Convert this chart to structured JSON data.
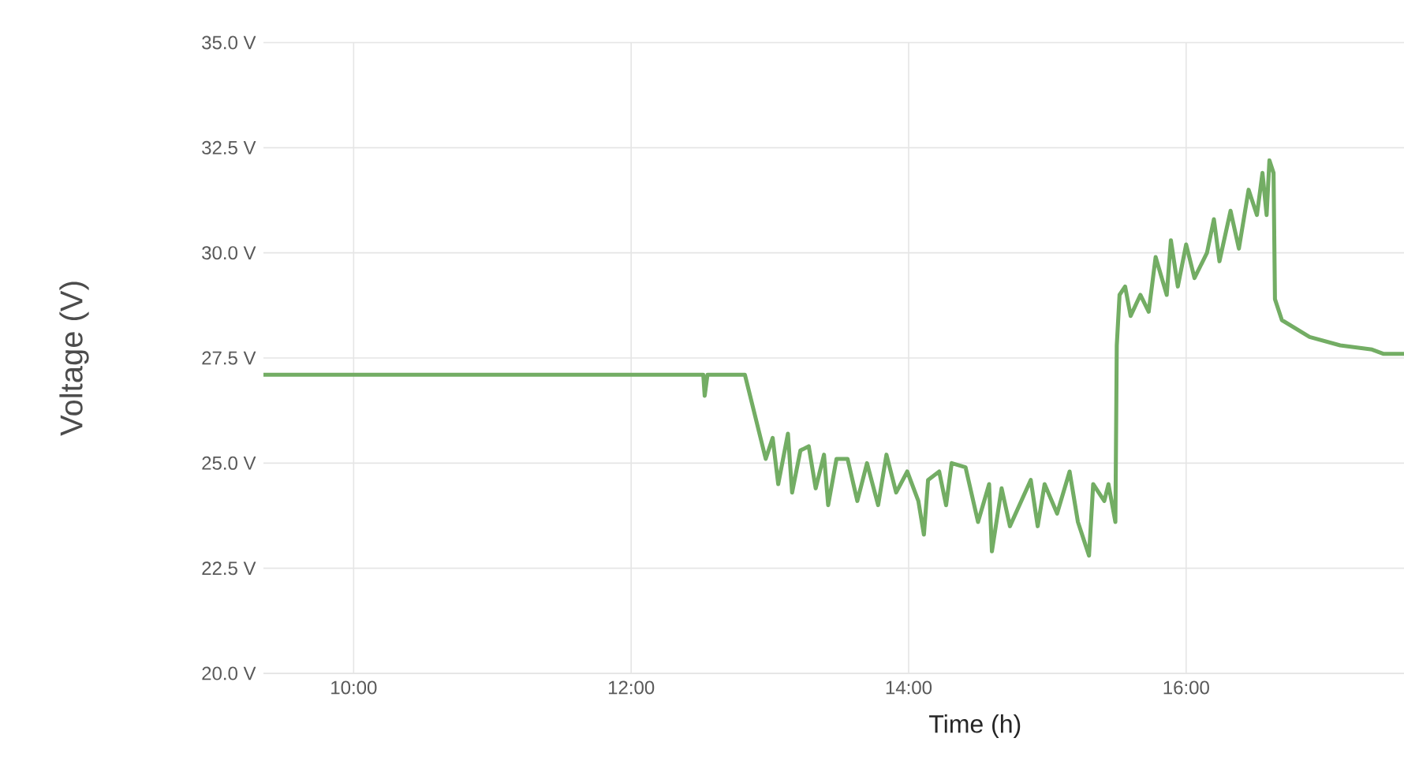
{
  "chart_data": {
    "type": "line",
    "xlabel": "Time (h)",
    "ylabel": "Voltage (V)",
    "x": [
      9.35,
      10.86,
      12.52,
      12.53,
      12.55,
      12.82,
      12.97,
      13.02,
      13.06,
      13.13,
      13.16,
      13.22,
      13.28,
      13.33,
      13.39,
      13.42,
      13.48,
      13.56,
      13.63,
      13.7,
      13.78,
      13.84,
      13.91,
      13.99,
      14.07,
      14.11,
      14.14,
      14.22,
      14.27,
      14.31,
      14.41,
      14.5,
      14.58,
      14.6,
      14.67,
      14.73,
      14.88,
      14.93,
      14.98,
      15.07,
      15.16,
      15.22,
      15.3,
      15.33,
      15.41,
      15.44,
      15.49,
      15.5,
      15.52,
      15.56,
      15.6,
      15.67,
      15.73,
      15.78,
      15.86,
      15.89,
      15.94,
      16.0,
      16.06,
      16.15,
      16.2,
      16.24,
      16.32,
      16.38,
      16.45,
      16.51,
      16.55,
      16.58,
      16.6,
      16.63,
      16.64,
      16.69,
      16.89,
      17.11,
      17.34,
      17.42,
      17.57
    ],
    "series": [
      {
        "color": "#73ad64",
        "values": [
          27.1,
          27.1,
          27.1,
          26.6,
          27.1,
          27.1,
          25.1,
          25.6,
          24.5,
          25.7,
          24.3,
          25.3,
          25.4,
          24.4,
          25.2,
          24.0,
          25.1,
          25.1,
          24.1,
          25.0,
          24.0,
          25.2,
          24.3,
          24.8,
          24.1,
          23.3,
          24.6,
          24.8,
          24.0,
          25.0,
          24.9,
          23.6,
          24.5,
          22.9,
          24.4,
          23.5,
          24.6,
          23.5,
          24.5,
          23.8,
          24.8,
          23.6,
          22.8,
          24.5,
          24.1,
          24.5,
          23.6,
          27.8,
          29.0,
          29.2,
          28.5,
          29.0,
          28.6,
          29.9,
          29.0,
          30.3,
          29.2,
          30.2,
          29.4,
          30.0,
          30.8,
          29.8,
          31.0,
          30.1,
          31.5,
          30.9,
          31.9,
          30.9,
          32.2,
          31.9,
          28.9,
          28.4,
          28.0,
          27.8,
          27.7,
          27.6,
          27.6
        ]
      }
    ],
    "xlim": [
      9.35,
      17.57
    ],
    "ylim": [
      20,
      35
    ],
    "xticks": [
      {
        "value": 10,
        "label": "10:00"
      },
      {
        "value": 12,
        "label": "12:00"
      },
      {
        "value": 14,
        "label": "14:00"
      },
      {
        "value": 16,
        "label": "16:00"
      }
    ],
    "yticks": [
      {
        "value": 20,
        "label": "20.0 V"
      },
      {
        "value": 22.5,
        "label": "22.5 V"
      },
      {
        "value": 25,
        "label": "25.0 V"
      },
      {
        "value": 27.5,
        "label": "27.5 V"
      },
      {
        "value": 30,
        "label": "30.0 V"
      },
      {
        "value": 32.5,
        "label": "32.5 V"
      },
      {
        "value": 35,
        "label": "35.0 V"
      }
    ],
    "grid": true,
    "marker": "none",
    "line_style": "solid"
  }
}
